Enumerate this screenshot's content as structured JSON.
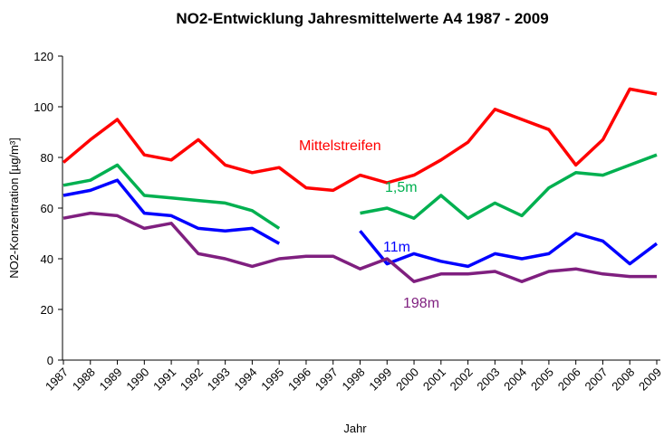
{
  "chart_data": {
    "type": "line",
    "title": "NO2-Entwicklung Jahresmittelwerte A4 1987 - 2009",
    "x_label": "Jahr",
    "y_label": "NO2-Konzentration [µg/m³]",
    "categories": [
      "1987",
      "1988",
      "1989",
      "1990",
      "1991",
      "1992",
      "1993",
      "1994",
      "1995",
      "1996",
      "1997",
      "1998",
      "1999",
      "2000",
      "2001",
      "2002",
      "2003",
      "2004",
      "2005",
      "2006",
      "2007",
      "2008",
      "2009"
    ],
    "ylim": [
      0,
      120
    ],
    "yticks": [
      0,
      20,
      40,
      60,
      80,
      100,
      120
    ],
    "grid": false,
    "series": [
      {
        "name": "Mittelstreifen",
        "color": "#ff0000",
        "values": [
          78,
          87,
          95,
          81,
          79,
          87,
          77,
          74,
          76,
          68,
          67,
          73,
          70,
          73,
          79,
          86,
          99,
          95,
          91,
          77,
          87,
          107,
          105
        ]
      },
      {
        "name": "1,5m",
        "color": "#00b050",
        "values": [
          69,
          71,
          77,
          65,
          64,
          63,
          62,
          59,
          52,
          null,
          null,
          58,
          60,
          56,
          65,
          56,
          62,
          57,
          68,
          74,
          73,
          77,
          81
        ]
      },
      {
        "name": "11m",
        "color": "#0000ff",
        "values": [
          65,
          67,
          71,
          58,
          57,
          52,
          51,
          52,
          46,
          null,
          null,
          51,
          38,
          42,
          39,
          37,
          42,
          40,
          42,
          50,
          47,
          38,
          46
        ]
      },
      {
        "name": "198m",
        "color": "#7f1f7f",
        "values": [
          56,
          58,
          57,
          52,
          54,
          42,
          40,
          37,
          40,
          41,
          41,
          36,
          40,
          31,
          34,
          34,
          35,
          31,
          35,
          36,
          34,
          33,
          33
        ]
      }
    ]
  }
}
